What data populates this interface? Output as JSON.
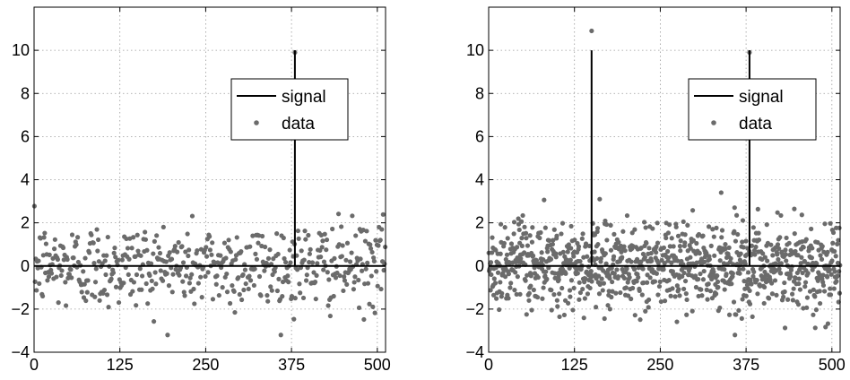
{
  "chart_data": [
    {
      "type": "scatter",
      "title": "",
      "xlabel": "",
      "ylabel": "",
      "xlim": [
        0,
        512
      ],
      "ylim": [
        -4,
        12
      ],
      "xticks": [
        0,
        125,
        250,
        375,
        500
      ],
      "yticks": [
        -4,
        -2,
        0,
        2,
        4,
        6,
        8,
        10
      ],
      "grid": true,
      "legend": {
        "position": "right",
        "entries": [
          "signal",
          "data"
        ]
      },
      "series": [
        {
          "name": "signal",
          "kind": "line",
          "x": [
            0,
            380,
            380,
            380,
            512
          ],
          "y": [
            0,
            0,
            10,
            0,
            0
          ]
        },
        {
          "name": "data",
          "kind": "scatter",
          "n": 512,
          "noise_sd": 1.0,
          "noise_range": [
            -3.2,
            3.2
          ],
          "spikes": [
            {
              "x": 380,
              "y": 9.9
            }
          ]
        }
      ],
      "colors": {
        "signal": "#000000",
        "data": "#6b6b6b"
      }
    },
    {
      "type": "scatter",
      "title": "",
      "xlabel": "",
      "ylabel": "",
      "xlim": [
        0,
        512
      ],
      "ylim": [
        -4,
        12
      ],
      "xticks": [
        0,
        125,
        250,
        375,
        500
      ],
      "yticks": [
        -4,
        -2,
        0,
        2,
        4,
        6,
        8,
        10
      ],
      "grid": true,
      "legend": {
        "position": "right",
        "entries": [
          "signal",
          "data"
        ]
      },
      "series": [
        {
          "name": "signal",
          "kind": "line",
          "x": [
            0,
            150,
            150,
            150,
            380,
            380,
            380,
            512
          ],
          "y": [
            0,
            0,
            10,
            0,
            0,
            10,
            0,
            0
          ]
        },
        {
          "name": "data",
          "kind": "scatter",
          "n": 1024,
          "noise_sd": 1.0,
          "noise_range": [
            -3.2,
            3.4
          ],
          "spikes": [
            {
              "x": 150,
              "y": 10.9
            },
            {
              "x": 380,
              "y": 9.9
            }
          ]
        }
      ],
      "colors": {
        "signal": "#000000",
        "data": "#6b6b6b"
      }
    }
  ]
}
